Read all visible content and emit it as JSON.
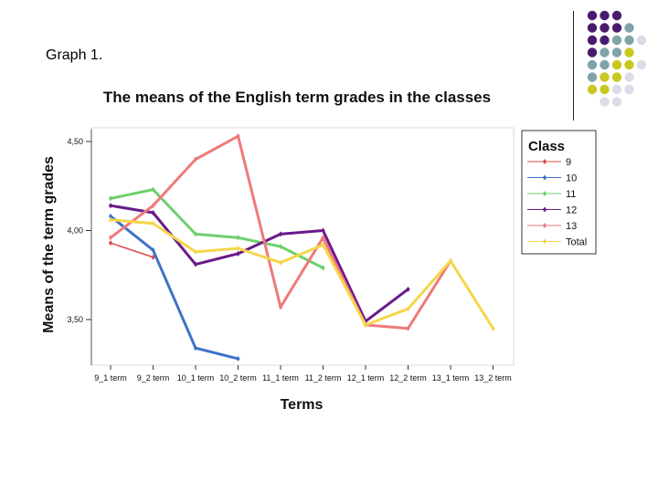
{
  "slide": {
    "label": "Graph 1."
  },
  "deco": {
    "dots": [
      {
        "row": 0,
        "col": 0,
        "color": "#4a1a6e"
      },
      {
        "row": 0,
        "col": 1,
        "color": "#4a1a6e"
      },
      {
        "row": 0,
        "col": 2,
        "color": "#4a1a6e"
      },
      {
        "row": 1,
        "col": 0,
        "color": "#4a1a6e"
      },
      {
        "row": 1,
        "col": 1,
        "color": "#4a1a6e"
      },
      {
        "row": 1,
        "col": 2,
        "color": "#4a1a6e"
      },
      {
        "row": 1,
        "col": 3,
        "color": "#7fa3a8"
      },
      {
        "row": 2,
        "col": 0,
        "color": "#4a1a6e"
      },
      {
        "row": 2,
        "col": 1,
        "color": "#4a1a6e"
      },
      {
        "row": 2,
        "col": 2,
        "color": "#7fa3a8"
      },
      {
        "row": 2,
        "col": 3,
        "color": "#7fa3a8"
      },
      {
        "row": 2,
        "col": 4,
        "color": "#dcdce8"
      },
      {
        "row": 3,
        "col": 0,
        "color": "#4a1a6e"
      },
      {
        "row": 3,
        "col": 1,
        "color": "#7fa3a8"
      },
      {
        "row": 3,
        "col": 2,
        "color": "#7fa3a8"
      },
      {
        "row": 3,
        "col": 3,
        "color": "#c8c820"
      },
      {
        "row": 4,
        "col": 0,
        "color": "#7fa3a8"
      },
      {
        "row": 4,
        "col": 1,
        "color": "#7fa3a8"
      },
      {
        "row": 4,
        "col": 2,
        "color": "#c8c820"
      },
      {
        "row": 4,
        "col": 3,
        "color": "#c8c820"
      },
      {
        "row": 4,
        "col": 4,
        "color": "#dcdce8"
      },
      {
        "row": 5,
        "col": 0,
        "color": "#7fa3a8"
      },
      {
        "row": 5,
        "col": 1,
        "color": "#c8c820"
      },
      {
        "row": 5,
        "col": 2,
        "color": "#c8c820"
      },
      {
        "row": 5,
        "col": 3,
        "color": "#dcdce8"
      },
      {
        "row": 6,
        "col": 0,
        "color": "#c8c820"
      },
      {
        "row": 6,
        "col": 1,
        "color": "#c8c820"
      },
      {
        "row": 6,
        "col": 2,
        "color": "#dcdce8"
      },
      {
        "row": 6,
        "col": 3,
        "color": "#dcdce8"
      },
      {
        "row": 7,
        "col": 1,
        "color": "#dcdce8"
      },
      {
        "row": 7,
        "col": 2,
        "color": "#dcdce8"
      }
    ]
  },
  "chart_data": {
    "type": "line",
    "title": "The means of the English term grades in the classes",
    "xlabel": "Terms",
    "ylabel": "Means of the term grades",
    "categories": [
      "9_1 term",
      "9_2 term",
      "10_1 term",
      "10_2 term",
      "11_1 term",
      "11_2 term",
      "12_1 term",
      "12_2 term",
      "13_1 term",
      "13_2 term"
    ],
    "y_ticks": [
      "3,50",
      "4,00",
      "4,50"
    ],
    "y_tick_values": [
      3.5,
      4.0,
      4.5
    ],
    "ylim": [
      3.25,
      4.57
    ],
    "grid": false,
    "legend": {
      "title": "Class",
      "placement": "right"
    },
    "series": [
      {
        "name": "9",
        "color": "#e04848",
        "values": [
          3.93,
          3.85,
          null,
          null,
          null,
          null,
          null,
          null,
          null,
          null
        ]
      },
      {
        "name": "10",
        "color": "#3f72c8",
        "values": [
          4.08,
          3.89,
          3.34,
          3.28,
          null,
          null,
          null,
          null,
          null,
          null
        ]
      },
      {
        "name": "11",
        "color": "#6ccf6c",
        "values": [
          4.18,
          4.23,
          3.98,
          3.96,
          3.91,
          3.79,
          null,
          null,
          null,
          null
        ]
      },
      {
        "name": "12",
        "color": "#6a1a8a",
        "values": [
          4.14,
          4.1,
          3.81,
          3.87,
          3.98,
          4.0,
          3.49,
          3.67,
          null,
          null
        ]
      },
      {
        "name": "13",
        "color": "#ee7a7a",
        "values": [
          3.96,
          4.14,
          4.4,
          4.53,
          3.57,
          3.96,
          3.47,
          3.45,
          3.83,
          null
        ]
      },
      {
        "name": "Total",
        "color": "#f5d64a",
        "values": [
          4.06,
          4.04,
          3.88,
          3.9,
          3.82,
          3.92,
          3.47,
          3.56,
          3.83,
          3.45
        ]
      }
    ]
  }
}
